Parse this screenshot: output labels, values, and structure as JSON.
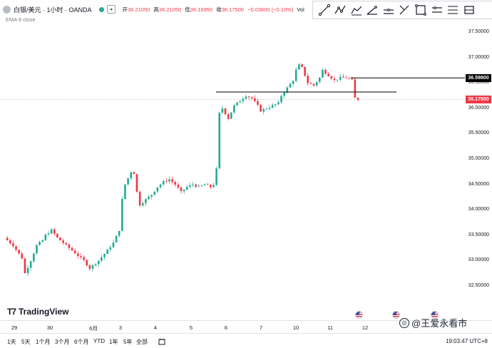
{
  "header": {
    "symbol_title": "白银/美元 · 1小时 · OANDA",
    "ohlc": {
      "open_label": "开",
      "open": "36.21050",
      "high_label": "高",
      "high": "36.21050",
      "low_label": "低",
      "low": "36.16950",
      "close_label": "收",
      "close": "36.17500",
      "change": "−0.03600 (−0.10%)",
      "vol_label": "Vol"
    },
    "indicator": "EMA 9 close"
  },
  "toolbar": {
    "tools": [
      "trend-line-icon",
      "ray-icon",
      "extended-line-icon",
      "trend-angle-icon",
      "horizontal-line-icon",
      "cross-line-icon",
      "rectangle-icon",
      "price-range-icon",
      "measure-icon",
      "fib-icon"
    ]
  },
  "price_axis": {
    "labels": [
      "37.50000",
      "37.00000",
      "36.50000",
      "36.00000",
      "35.50000",
      "35.00000",
      "34.50000",
      "34.00000",
      "33.50000",
      "33.00000",
      "32.50000"
    ],
    "resistance_tag": "36.59800",
    "current_tag": "36.17500"
  },
  "time_axis": {
    "labels": [
      "29",
      "30",
      "6月",
      "3",
      "4",
      "5",
      "6",
      "7",
      "10",
      "11",
      "12"
    ]
  },
  "ranges": [
    "1天",
    "5天",
    "1个月",
    "3个月",
    "6个月",
    "YTD",
    "1年",
    "5年",
    "全部"
  ],
  "clock": "19:03:47 UTC+8",
  "logo_text": "TradingView",
  "watermark": "@王爱永看市",
  "colors": {
    "up": "#22ab94",
    "down": "#f23645",
    "line": "#000000"
  },
  "chart_data": {
    "type": "candlestick",
    "symbol": "白银/美元",
    "ylim": [
      32.3,
      37.7
    ],
    "resistance": 36.598,
    "support": 36.32,
    "current": 36.175,
    "anchors": [
      [
        0,
        33.45
      ],
      [
        3,
        33.3
      ],
      [
        6,
        33.05
      ],
      [
        7,
        32.75
      ],
      [
        9,
        33.0
      ],
      [
        11,
        33.3
      ],
      [
        13,
        33.4
      ],
      [
        14,
        33.5
      ],
      [
        16,
        33.6
      ],
      [
        18,
        33.45
      ],
      [
        21,
        33.3
      ],
      [
        24,
        33.15
      ],
      [
        27,
        33.0
      ],
      [
        29,
        32.85
      ],
      [
        32,
        33.0
      ],
      [
        35,
        33.2
      ],
      [
        37,
        33.35
      ],
      [
        39,
        33.6
      ],
      [
        40,
        34.2
      ],
      [
        41,
        34.5
      ],
      [
        43,
        34.75
      ],
      [
        44,
        34.72
      ],
      [
        45,
        34.35
      ],
      [
        46,
        34.1
      ],
      [
        48,
        34.2
      ],
      [
        50,
        34.3
      ],
      [
        52,
        34.45
      ],
      [
        54,
        34.55
      ],
      [
        56,
        34.6
      ],
      [
        58,
        34.5
      ],
      [
        60,
        34.35
      ],
      [
        62,
        34.45
      ],
      [
        64,
        34.5
      ],
      [
        66,
        34.45
      ],
      [
        68,
        34.5
      ],
      [
        70,
        34.45
      ],
      [
        71,
        34.5
      ],
      [
        72,
        34.8
      ],
      [
        73,
        35.9
      ],
      [
        74,
        36.0
      ],
      [
        76,
        35.8
      ],
      [
        78,
        36.05
      ],
      [
        80,
        36.15
      ],
      [
        82,
        36.25
      ],
      [
        84,
        36.2
      ],
      [
        86,
        36.05
      ],
      [
        87,
        35.95
      ],
      [
        89,
        36.0
      ],
      [
        91,
        36.05
      ],
      [
        93,
        36.1
      ],
      [
        94,
        36.25
      ],
      [
        96,
        36.4
      ],
      [
        98,
        36.55
      ],
      [
        99,
        36.75
      ],
      [
        100,
        36.85
      ],
      [
        101,
        36.8
      ],
      [
        102,
        36.65
      ],
      [
        103,
        36.5
      ],
      [
        105,
        36.45
      ],
      [
        107,
        36.6
      ],
      [
        108,
        36.75
      ],
      [
        110,
        36.65
      ],
      [
        112,
        36.55
      ],
      [
        114,
        36.6
      ],
      [
        116,
        36.6
      ],
      [
        117,
        36.58
      ],
      [
        118,
        36.55
      ],
      [
        119,
        36.2
      ],
      [
        120,
        36.175
      ]
    ]
  }
}
